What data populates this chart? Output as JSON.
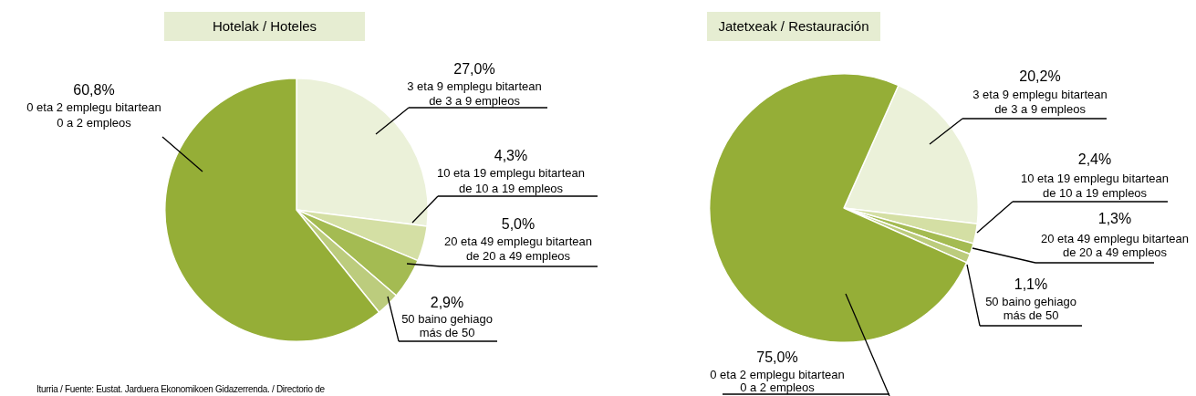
{
  "chart_data": [
    {
      "type": "pie",
      "title": "Hotelak / Hoteles",
      "categories": [
        "3 eta 9 emplegu bitartean\nde 3 a 9 empleos",
        "10 eta 19 emplegu bitartean\nde 10 a 19 empleos",
        "20 eta 49 emplegu bitartean\nde 20 a 49 empleos",
        "50 baino gehiago\nmás de 50",
        "0 eta 2 emplegu bitartean\n0 a 2 empleos"
      ],
      "values": [
        27.0,
        4.3,
        5.0,
        2.9,
        60.8
      ],
      "value_labels": [
        "27,0%",
        "4,3%",
        "5,0%",
        "2,9%",
        "60,8%"
      ],
      "colors": [
        "#ebf1d9",
        "#d4dfa4",
        "#a4bb52",
        "#bccc7d",
        "#95ae37"
      ],
      "legend": false,
      "annotations": [
        "Iturria / Fuente: Eustat. Jarduera Ekonomikoen Gidazerrenda. / Directorio de"
      ]
    },
    {
      "type": "pie",
      "title": "Jatetxeak / Restauración",
      "categories": [
        "3 eta 9 emplegu bitartean\nde 3 a 9 empleos",
        "10 eta 19 emplegu bitartean\nde 10 a 19 empleos",
        "20 eta 49 emplegu bitartean\nde 20 a 49 empleos",
        "50 baino gehiago\nmás de 50",
        "0 eta 2 emplegu bitartean\n0 a 2 empleos"
      ],
      "values": [
        20.2,
        2.4,
        1.3,
        1.1,
        75.0
      ],
      "value_labels": [
        "20,2%",
        "2,4%",
        "1,3%",
        "1,1%",
        "75,0%"
      ],
      "colors": [
        "#ebf1d9",
        "#d4dfa4",
        "#a4bb52",
        "#bccc7d",
        "#95ae37"
      ],
      "legend": false
    }
  ]
}
